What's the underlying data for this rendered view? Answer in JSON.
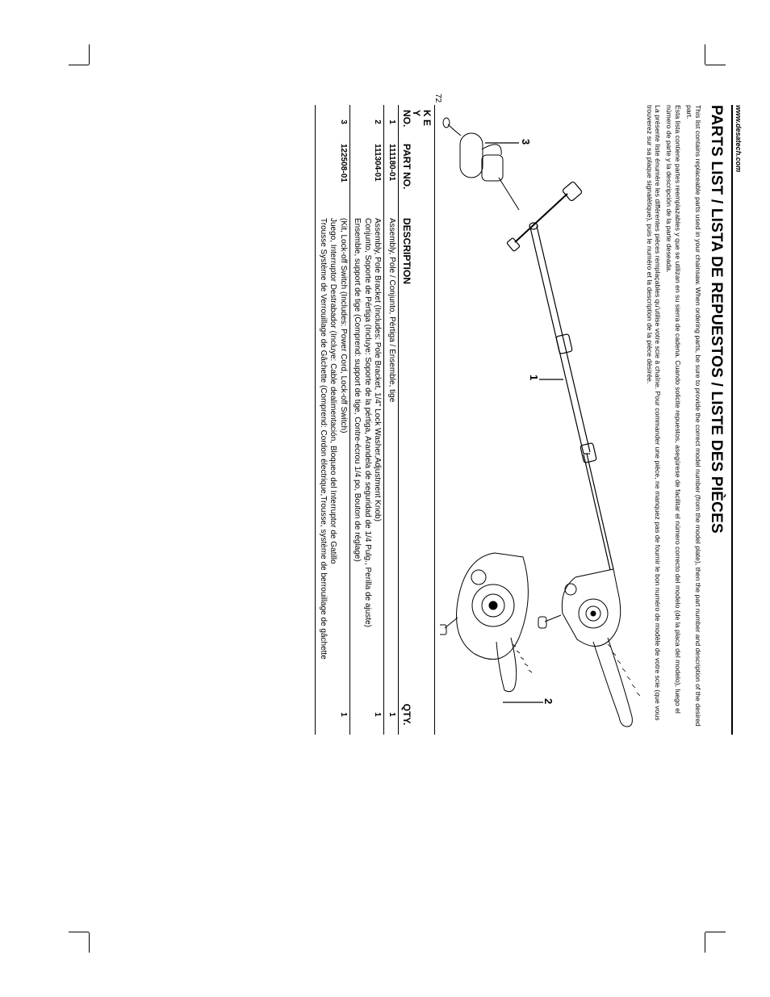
{
  "url": "www.desatech.com",
  "title": "PARTS LIST / LISTA DE REPUESTOS / LISTE DES PIÈCES",
  "intro_en": "This list contains replaceable parts used in your chainsaw. When ordering parts, be sure to provide the correct model number (from the model plate), then the part number and description of the desired part.",
  "intro_es": "Esta lista contiene partes reemplazables y que se utilizan en su sierra de cadena. Cuando solicite repuestos, asegúrese de facilitar el número correcto del modelo (de la placa del modelo), luego el número de parte y la descripción de la parte deseada.",
  "intro_fr": "La présente liste énumère les différentes pièces remplaçables qu'utilise votre scie à chaîne. Pour commander une pièce, ne manquez pas de fournir le bon numéro de modèle de votre scie (que vous trouverez sur sa plaque signalétique), puis le numéro et la description de la pièce désirée.",
  "page_number": "72",
  "callouts": {
    "c1": "1",
    "c2": "2",
    "c3": "3"
  },
  "table": {
    "headers": {
      "key": "KEY NO.",
      "key_line1": "K E Y",
      "key_line2": "NO.",
      "partno": "PART NO.",
      "desc": "DESCRIPTION",
      "qty": "QTY."
    },
    "rows": [
      {
        "key": "1",
        "partno": "111180-01",
        "desc": "Assembly, Pole / Conjunto, Pértiga / Ensemble, tige",
        "qty": "1"
      },
      {
        "key": "2",
        "partno": "111304-01",
        "desc": "Assembly, Pole Bracket (Includes: Pole Bracket, 1/4\" Lock Washer,Adjustment Knob)\nConjunto, Soporte de Pértiga (Incluye: Soporte de la pértiga, Arandela de seguridad de 1/4 Pulg., Perilla de ajuste)\nEnsemble, support de tige (Comprend: support de tige, Contre-écrou 1/4 po, Bouton de réglage)",
        "qty": "1"
      },
      {
        "key": "3",
        "partno": "122508-01",
        "desc": "(Kit, Lock-off Switch (Includes: Power Cord, Lock-off Switch)\nJuego, Interruptor Destrabador (Incluye: Cable dealimentación, Bloqueo del Interruptor de Gatillo\nTrousse Système de Verrouillage de Gâchette (Comprend: Cordon électrique,Trousse, système de berrouillage de gâchette",
        "qty": "1"
      }
    ]
  }
}
